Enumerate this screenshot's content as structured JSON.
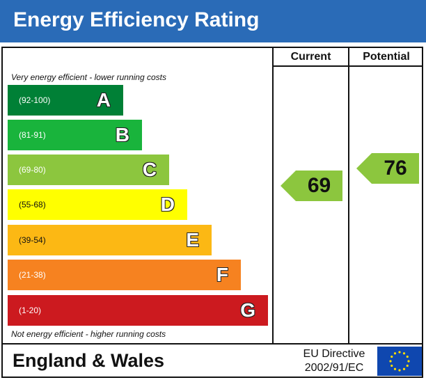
{
  "colors": {
    "header_bg": "#2a6bb7",
    "star": "#ffdd00",
    "flag_bg": "#0f47af"
  },
  "header": {
    "title": "Energy Efficiency Rating"
  },
  "columns": {
    "current_label": "Current",
    "potential_label": "Potential"
  },
  "notes": {
    "top": "Very energy efficient - lower running costs",
    "bottom": "Not energy efficient - higher running costs"
  },
  "chart_data": {
    "type": "bar",
    "title": "Energy Efficiency Rating",
    "categories": [
      "A",
      "B",
      "C",
      "D",
      "E",
      "F",
      "G"
    ],
    "bands": [
      {
        "letter": "A",
        "range": "(92-100)",
        "min": 92,
        "max": 100,
        "color": "#008036",
        "range_color": "#ffffff"
      },
      {
        "letter": "B",
        "range": "(81-91)",
        "min": 81,
        "max": 91,
        "color": "#19b43c",
        "range_color": "#ffffff"
      },
      {
        "letter": "C",
        "range": "(69-80)",
        "min": 69,
        "max": 80,
        "color": "#8cc63e",
        "range_color": "#ffffff"
      },
      {
        "letter": "D",
        "range": "(55-68)",
        "min": 55,
        "max": 68,
        "color": "#ffff00",
        "range_color": "#111111"
      },
      {
        "letter": "E",
        "range": "(39-54)",
        "min": 39,
        "max": 54,
        "color": "#fcb814",
        "range_color": "#111111"
      },
      {
        "letter": "F",
        "range": "(21-38)",
        "min": 21,
        "max": 38,
        "color": "#f68220",
        "range_color": "#ffffff"
      },
      {
        "letter": "G",
        "range": "(1-20)",
        "min": 1,
        "max": 20,
        "color": "#cc1a1f",
        "range_color": "#ffffff"
      }
    ],
    "ratings": [
      {
        "name": "Current",
        "value": 69,
        "band": "C",
        "color": "#8cc63e"
      },
      {
        "name": "Potential",
        "value": 76,
        "band": "C",
        "color": "#8cc63e"
      }
    ]
  },
  "footer": {
    "region": "England & Wales",
    "directive_line1": "EU Directive",
    "directive_line2": "2002/91/EC"
  }
}
